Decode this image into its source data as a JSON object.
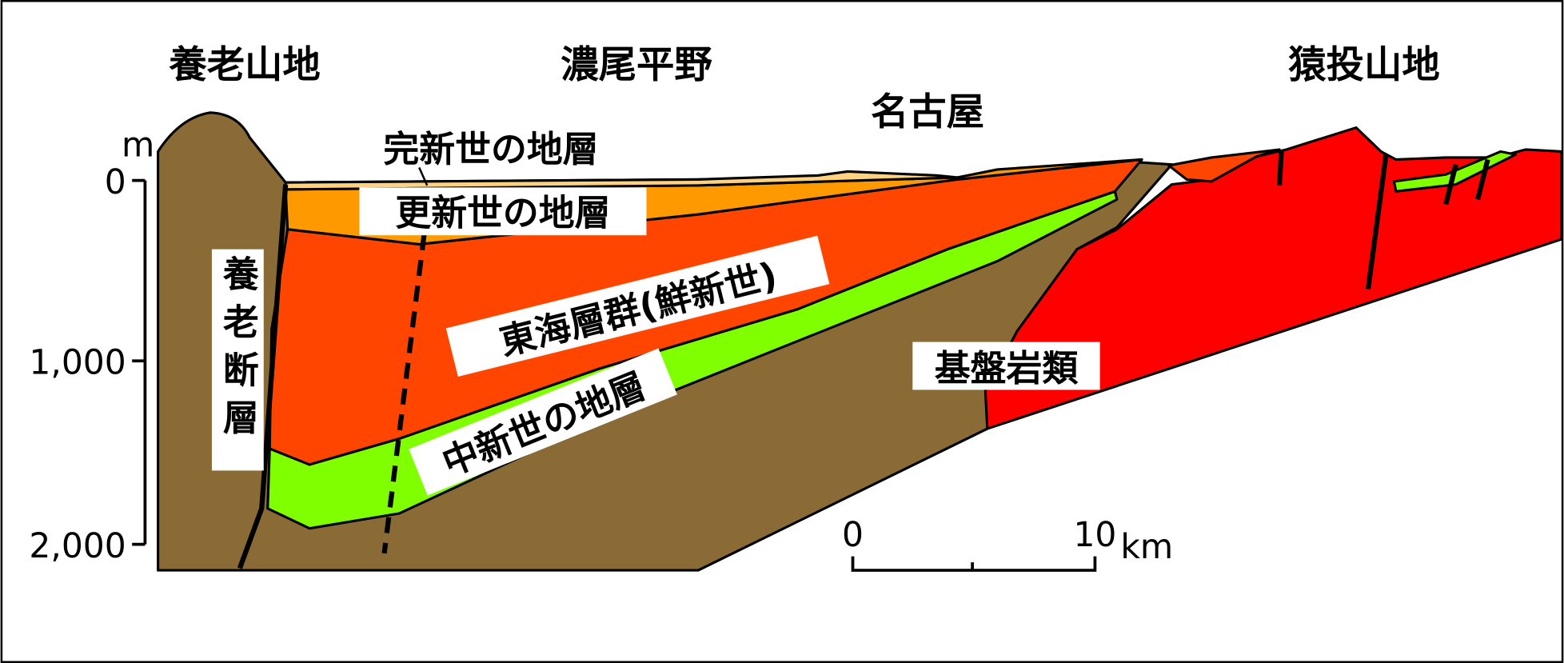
{
  "regions": [
    "養老山地",
    "濃尾平野",
    "名古屋",
    "猿投山地"
  ],
  "layers": {
    "holocene": "完新世の地層",
    "pleistocene": "更新世の地層",
    "tokai": "東海層群(鮮新世)",
    "miocene": "中新世の地層",
    "basement": "基盤岩類"
  },
  "fault": "養老断層",
  "depth_axis": {
    "unit": "m",
    "ticks": [
      "0",
      "1,000",
      "2,000"
    ]
  },
  "scale_bar": {
    "start": "0",
    "end": "10",
    "unit": "km"
  }
}
